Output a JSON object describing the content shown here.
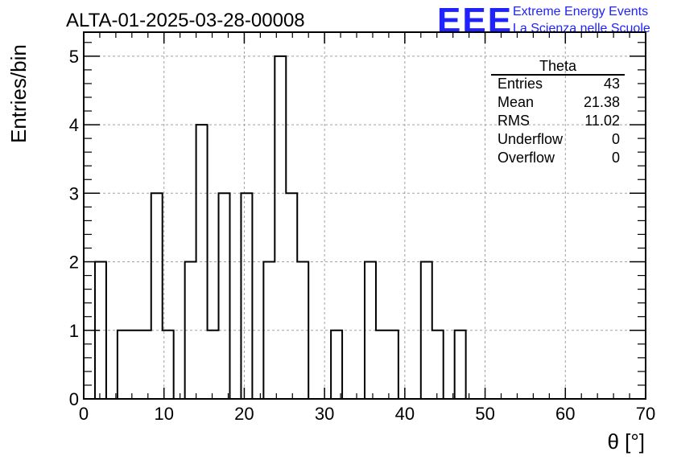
{
  "chart_data": {
    "type": "histogram",
    "title": "ALTA-01-2025-03-28-00008",
    "xlabel": "θ [°]",
    "ylabel": "Entries/bin",
    "xlim": [
      0,
      70
    ],
    "ylim": [
      0,
      5.35
    ],
    "xticks": [
      0,
      10,
      20,
      30,
      40,
      50,
      60,
      70
    ],
    "xtick_labels": [
      "0",
      "10",
      "20",
      "30",
      "40",
      "50",
      "60",
      "70"
    ],
    "yticks": [
      0,
      1,
      2,
      3,
      4,
      5
    ],
    "ytick_labels": [
      "0",
      "1",
      "2",
      "3",
      "4",
      "5"
    ],
    "grid": true,
    "bin_width": 1.4,
    "bins_start": 1.4,
    "values": [
      2,
      0,
      1,
      1,
      1,
      3,
      1,
      0,
      2,
      4,
      1,
      3,
      0,
      3,
      0,
      2,
      5,
      3,
      2,
      0,
      0,
      1,
      0,
      0,
      2,
      1,
      1,
      0,
      0,
      2,
      1,
      0,
      1,
      0,
      0,
      0,
      0,
      0,
      0,
      0,
      0,
      0,
      0,
      0,
      0,
      0,
      0,
      0
    ],
    "legend": {
      "placement": "top-right",
      "name": "Theta",
      "rows": [
        {
          "label": "Entries",
          "value": "43"
        },
        {
          "label": "Mean",
          "value": "21.38"
        },
        {
          "label": "RMS",
          "value": "11.02"
        },
        {
          "label": "Underflow",
          "value": "0"
        },
        {
          "label": "Overflow",
          "value": "0"
        }
      ]
    }
  },
  "branding": {
    "logo": "EEE",
    "line1": "Extreme Energy Events",
    "line2": "La Scienza nelle Scuole",
    "color": "#1f22ff"
  },
  "colors": {
    "histogram": "#000000",
    "grid": "#a0a0a0"
  }
}
